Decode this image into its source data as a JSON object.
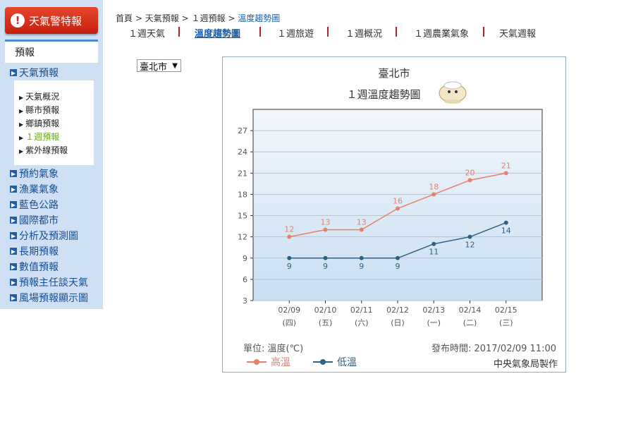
{
  "sidebar": {
    "alert_label": "天氣警特報",
    "alert_icon": "!",
    "forecast_header": "預報",
    "weather_forecast": "天氣預報",
    "sub_items": [
      "天氣概況",
      "縣市預報",
      "鄉鎮預報",
      "１週預報",
      "紫外線預報"
    ],
    "categories": [
      "預約氣象",
      "漁業氣象",
      "藍色公路",
      "國際都市",
      "分析及預測圖",
      "長期預報",
      "數值預報",
      "預報主任談天氣",
      "風場預報顯示圖"
    ]
  },
  "breadcrumb": {
    "home": "首頁",
    "sep": ">",
    "level1": "天氣預報",
    "level2": "１週預報",
    "current": "溫度趨勢圖"
  },
  "tabs": [
    "１週天氣",
    "溫度趨勢圖",
    "１週旅遊",
    "１週概況",
    "１週農業氣象",
    "天氣週報"
  ],
  "city_select": {
    "value": "臺北市"
  },
  "chart_info": {
    "city": "臺北市",
    "title": "１週溫度趨勢圖",
    "unit_label": "單位: 溫度(℃)",
    "issue_time": "發布時間: 2017/02/09 11:00",
    "credit": "中央氣象局製作"
  },
  "chart_data": {
    "type": "line",
    "categories": [
      "02/09",
      "02/10",
      "02/11",
      "02/12",
      "02/13",
      "02/14",
      "02/15"
    ],
    "weekdays": [
      "(四)",
      "(五)",
      "(六)",
      "(日)",
      "(一)",
      "(二)",
      "(三)"
    ],
    "yticks": [
      3,
      6,
      9,
      12,
      15,
      18,
      21,
      24,
      27
    ],
    "ylim": [
      3,
      30
    ],
    "grid": true,
    "legend_position": "bottom-left",
    "series": [
      {
        "name": "高溫",
        "values": [
          12,
          13,
          13,
          16,
          18,
          20,
          21
        ],
        "color": "#e8806a",
        "label_position": "above"
      },
      {
        "name": "低溫",
        "values": [
          9,
          9,
          9,
          9,
          11,
          12,
          14
        ],
        "color": "#2f6185",
        "label_position": "below"
      }
    ]
  },
  "colors": {
    "sidebar_bg": "#cfe0f5",
    "link": "#1a5da8",
    "active_sub": "#6aa820",
    "alert_red": "#d8301b"
  }
}
